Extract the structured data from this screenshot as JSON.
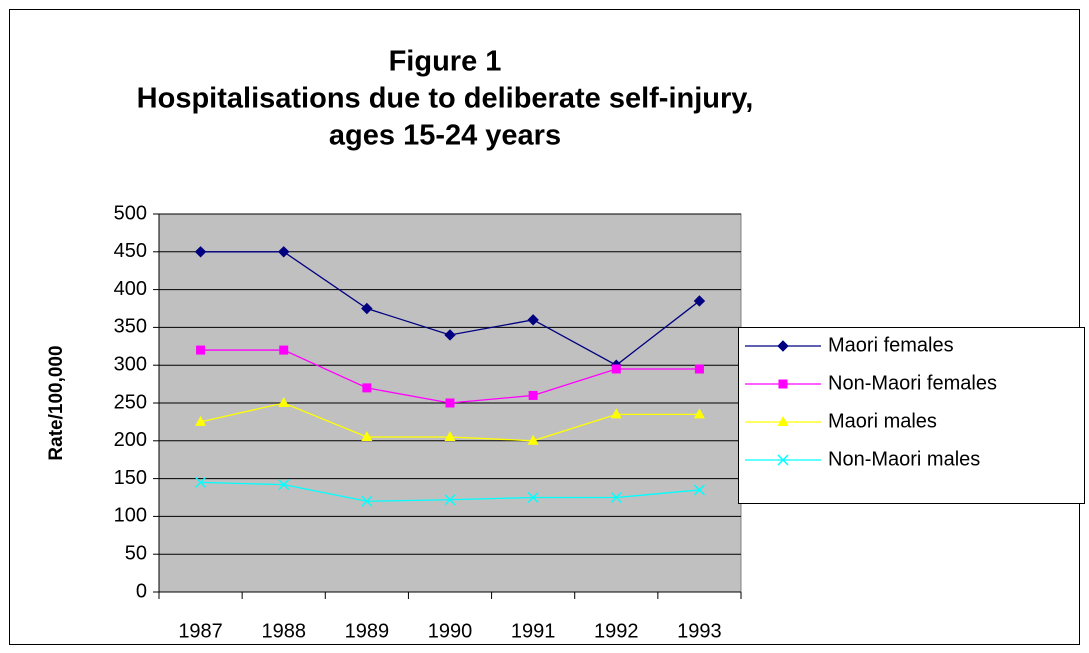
{
  "chart_data": {
    "type": "line",
    "title": [
      "Figure 1",
      "Hospitalisations due to deliberate self-injury,",
      "ages 15-24 years"
    ],
    "y_label": "Rate/100,000",
    "categories": [
      "1987",
      "1988",
      "1989",
      "1990",
      "1991",
      "1992",
      "1993"
    ],
    "series": [
      {
        "name": "Maori females",
        "color": "#000080",
        "marker": "diamond",
        "values": [
          450,
          450,
          375,
          340,
          360,
          300,
          385
        ]
      },
      {
        "name": "Non-Maori females",
        "color": "#ff00ff",
        "marker": "square",
        "values": [
          320,
          320,
          270,
          250,
          260,
          295,
          295
        ]
      },
      {
        "name": "Maori males",
        "color": "#ffff00",
        "marker": "triangle",
        "values": [
          225,
          250,
          205,
          205,
          200,
          235,
          235
        ]
      },
      {
        "name": "Non-Maori males",
        "color": "#00ffff",
        "marker": "x",
        "values": [
          145,
          142,
          120,
          122,
          125,
          125,
          135
        ]
      }
    ],
    "ylim": [
      0,
      500
    ],
    "yticks": [
      0,
      50,
      100,
      150,
      200,
      250,
      300,
      350,
      400,
      450,
      500
    ],
    "grid": true,
    "legend": "right"
  }
}
